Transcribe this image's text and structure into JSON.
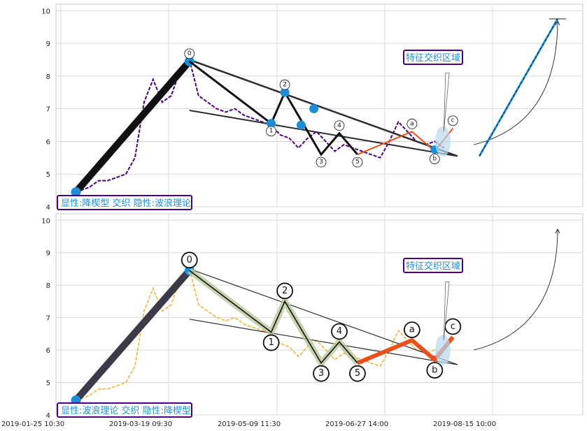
{
  "colors": {
    "price_top": "#4b0082",
    "price_bottom": "#f0b43c",
    "accent_blue": "#1e8fd6",
    "box_border": "#4b0082",
    "box_text": "#1e8fd6",
    "dark_line": "#2b2b33",
    "wave_orange": "#e8501c",
    "wave_green": "#b8c89a"
  },
  "chart_data": [
    {
      "type": "line",
      "panel": "top",
      "ylim": [
        4,
        10.2
      ],
      "yticks": [
        "4",
        "5",
        "6",
        "7",
        "8",
        "9",
        "10"
      ],
      "grid": true,
      "annotations": {
        "bottom_left_box": "显性:降楔型 交织 隐性:波浪理论",
        "zone_box": "特征交织区域"
      },
      "wave_labels": [
        "0",
        "1",
        "2",
        "3",
        "4",
        "5",
        "a",
        "b",
        "c"
      ],
      "series": [
        {
          "values": [
            4.4,
            4.5,
            4.6,
            4.8,
            4.8,
            4.9,
            5.0,
            5.5,
            7.2,
            7.9,
            7.2,
            7.4,
            8.2,
            8.5,
            7.4,
            7.2,
            7.0,
            6.9,
            7.0,
            6.8,
            6.7,
            6.6,
            6.5,
            6.2,
            6.1,
            5.8,
            6.1,
            6.3,
            6.0,
            5.7,
            5.9,
            5.8,
            5.7,
            5.6,
            5.5,
            6.0,
            6.6,
            6.3,
            6.0,
            5.9,
            6.0,
            5.8
          ]
        }
      ]
    },
    {
      "type": "line",
      "panel": "bottom",
      "ylim": [
        4,
        10.2
      ],
      "yticks": [
        "4",
        "5",
        "6",
        "7",
        "8",
        "9",
        "10"
      ],
      "xticks": [
        "2019-01-25 10:30",
        "2019-03-19 09:30",
        "2019-05-09 11:30",
        "2019-06-27 14:00",
        "2019-08-15 10:00"
      ],
      "grid": true,
      "annotations": {
        "bottom_left_box": "显性:波浪理论 交织 隐性:降楔型",
        "zone_box": "特征交织区域"
      },
      "wave_labels": [
        "0",
        "1",
        "2",
        "3",
        "4",
        "5",
        "a",
        "b",
        "c"
      ],
      "series": [
        {
          "values": [
            4.4,
            4.5,
            4.6,
            4.8,
            4.8,
            4.9,
            5.0,
            5.5,
            7.2,
            7.9,
            7.2,
            7.4,
            8.2,
            8.5,
            7.4,
            7.2,
            7.0,
            6.9,
            7.0,
            6.8,
            6.7,
            6.6,
            6.5,
            6.2,
            6.1,
            5.8,
            6.1,
            6.3,
            6.0,
            5.7,
            5.9,
            5.8,
            5.7,
            5.6,
            5.5,
            6.0,
            6.6,
            6.3,
            6.0,
            5.9,
            6.0,
            5.8
          ]
        }
      ]
    }
  ]
}
